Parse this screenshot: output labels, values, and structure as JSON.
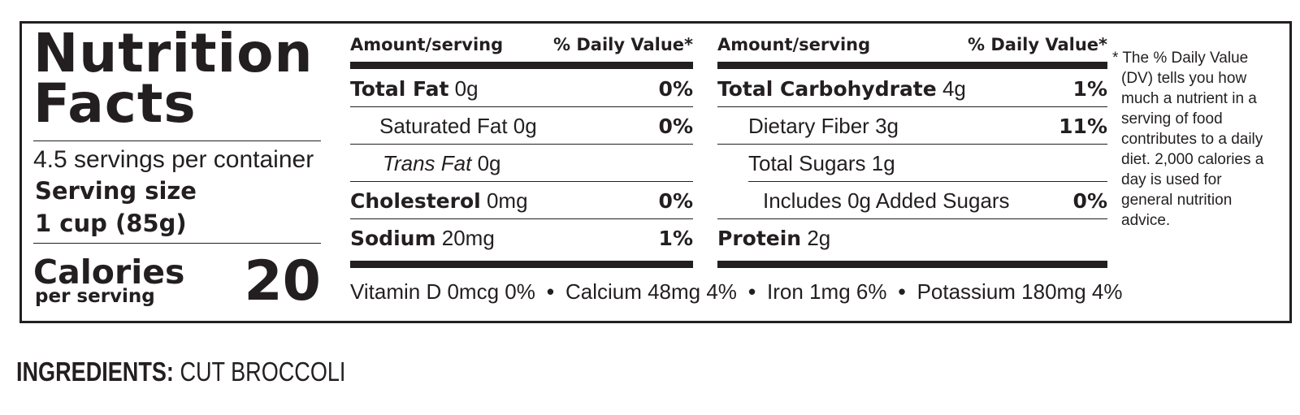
{
  "title": "Nutrition Facts",
  "title_line1": "Nutrition",
  "title_line2": "Facts",
  "servings_per_container": "4.5 servings per container",
  "serving_size_label": "Serving size",
  "serving_size_value": "1 cup (85g)",
  "calories_label": "Calories",
  "calories_sub": "per serving",
  "calories_value": "20",
  "header_amount": "Amount/serving",
  "header_dv": "% Daily Value*",
  "left_rows": [
    {
      "name": "Total Fat",
      "amount": "0g",
      "pct": "0%"
    },
    {
      "name": "Saturated Fat",
      "amount": "0g",
      "pct": "0%"
    },
    {
      "name": "Trans Fat",
      "amount": "0g",
      "pct": ""
    },
    {
      "name": "Cholesterol",
      "amount": "0mg",
      "pct": "0%"
    },
    {
      "name": "Sodium",
      "amount": "20mg",
      "pct": "1%"
    }
  ],
  "right_rows": [
    {
      "name": "Total Carbohydrate",
      "amount": "4g",
      "pct": "1%"
    },
    {
      "name": "Dietary Fiber",
      "amount": "3g",
      "pct": "11%"
    },
    {
      "name": "Total Sugars",
      "amount": "1g",
      "pct": ""
    },
    {
      "name": "Includes 0g Added Sugars",
      "amount": "",
      "pct": "0%"
    },
    {
      "name": "Protein",
      "amount": "2g",
      "pct": ""
    }
  ],
  "vitamins": [
    "Vitamin D 0mcg 0%",
    "Calcium 48mg 4%",
    "Iron 1mg 6%",
    "Potassium 180mg 4%"
  ],
  "separator": "•",
  "footnote": "* The % Daily Value (DV) tells you how much a nutrient in a serving of food contributes to a daily diet. 2,000 calories a day is used for general nutrition advice.",
  "ingredients_label": "INGREDIENTS:",
  "ingredients_value": "CUT BROCCOLI",
  "colors": {
    "ink": "#231f20",
    "background": "#ffffff"
  }
}
